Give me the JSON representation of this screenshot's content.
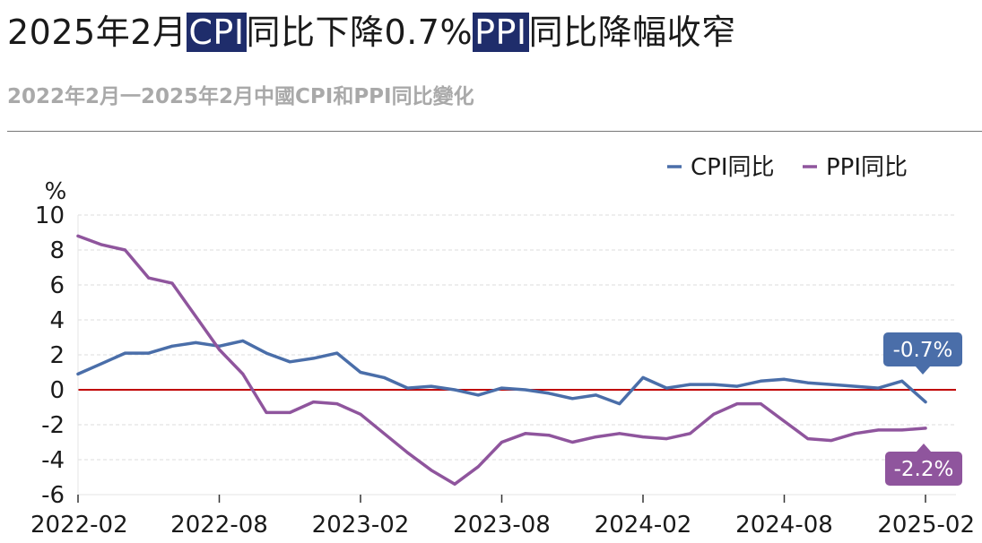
{
  "header": {
    "title_parts": [
      "2025年2月",
      "CPI",
      "同比下降0.7%",
      "PPI",
      "同比降幅收窄"
    ],
    "subtitle": "2022年2月一2025年2月中國CPI和PPI同比變化"
  },
  "colors": {
    "cpi": "#4a6ea9",
    "ppi": "#8f559d",
    "zero_line": "#c00000",
    "title_highlight": "#1f2d6b",
    "grid": "#dddddd"
  },
  "chart_data": {
    "type": "line",
    "ylabel": "%",
    "ylim": [
      -6,
      10
    ],
    "yticks": [
      10,
      8,
      6,
      4,
      2,
      0,
      -2,
      -4,
      -6
    ],
    "xtick_labels": [
      "2022-02",
      "2022-08",
      "2023-02",
      "2023-08",
      "2024-02",
      "2024-08",
      "2025-02"
    ],
    "grid": true,
    "legend_position": "top-right",
    "reference_line": 0,
    "categories": [
      "2022-02",
      "2022-03",
      "2022-04",
      "2022-05",
      "2022-06",
      "2022-07",
      "2022-08",
      "2022-09",
      "2022-10",
      "2022-11",
      "2022-12",
      "2023-01",
      "2023-02",
      "2023-03",
      "2023-04",
      "2023-05",
      "2023-06",
      "2023-07",
      "2023-08",
      "2023-09",
      "2023-10",
      "2023-11",
      "2023-12",
      "2024-01",
      "2024-02",
      "2024-03",
      "2024-04",
      "2024-05",
      "2024-06",
      "2024-07",
      "2024-08",
      "2024-09",
      "2024-10",
      "2024-11",
      "2024-12",
      "2025-01",
      "2025-02"
    ],
    "series": [
      {
        "name": "CPI同比",
        "values": [
          0.9,
          1.5,
          2.1,
          2.1,
          2.5,
          2.7,
          2.5,
          2.8,
          2.1,
          1.6,
          1.8,
          2.1,
          1.0,
          0.7,
          0.1,
          0.2,
          0.0,
          -0.3,
          0.1,
          0.0,
          -0.2,
          -0.5,
          -0.3,
          -0.8,
          0.7,
          0.1,
          0.3,
          0.3,
          0.2,
          0.5,
          0.6,
          0.4,
          0.3,
          0.2,
          0.1,
          0.5,
          -0.7
        ],
        "end_label": "-0.7%"
      },
      {
        "name": "PPI同比",
        "values": [
          8.8,
          8.3,
          8.0,
          6.4,
          6.1,
          4.2,
          2.3,
          0.9,
          -1.3,
          -1.3,
          -0.7,
          -0.8,
          -1.4,
          -2.5,
          -3.6,
          -4.6,
          -5.4,
          -4.4,
          -3.0,
          -2.5,
          -2.6,
          -3.0,
          -2.7,
          -2.5,
          -2.7,
          -2.8,
          -2.5,
          -1.4,
          -0.8,
          -0.8,
          -1.8,
          -2.8,
          -2.9,
          -2.5,
          -2.3,
          -2.3,
          -2.2
        ],
        "end_label": "-2.2%"
      }
    ]
  }
}
